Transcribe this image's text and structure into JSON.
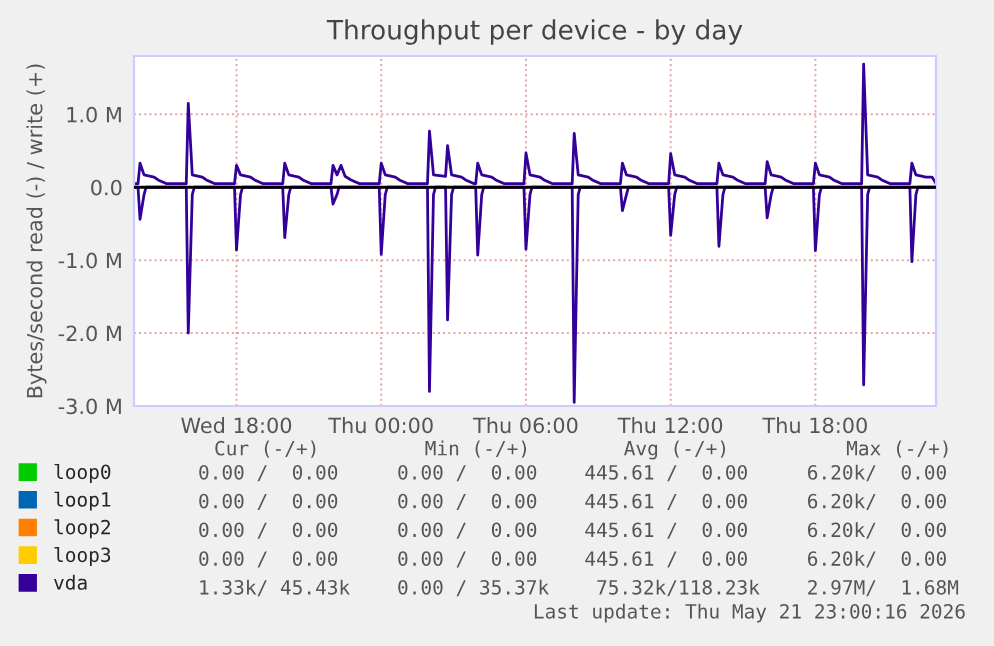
{
  "chart_data": {
    "type": "line",
    "title": "Throughput per device - by day",
    "ylabel": "Bytes/second read (-) / write (+)",
    "xlim": [
      "2026-05-20T13:45",
      "2026-05-21T23:00"
    ],
    "xticks": [
      {
        "value": "2026-05-20T18:00",
        "label": "Wed 18:00"
      },
      {
        "value": "2026-05-21T00:00",
        "label": "Thu 00:00"
      },
      {
        "value": "2026-05-21T06:00",
        "label": "Thu 06:00"
      },
      {
        "value": "2026-05-21T12:00",
        "label": "Thu 12:00"
      },
      {
        "value": "2026-05-21T18:00",
        "label": "Thu 18:00"
      }
    ],
    "ylim": [
      -3.0,
      1.8
    ],
    "yticks": [
      {
        "value": -3,
        "label": "-3.0 M"
      },
      {
        "value": -2,
        "label": "-2.0 M"
      },
      {
        "value": -1,
        "label": "-1.0 M"
      },
      {
        "value": 0,
        "label": "0.0"
      },
      {
        "value": 1,
        "label": "1.0 M"
      }
    ],
    "grid": true,
    "legend": "bottom",
    "line_style": "solid",
    "marker": "none",
    "ref_lines": [
      {
        "axis": "y",
        "value": 0,
        "color": "#000000"
      }
    ],
    "series": [
      {
        "name": "loop0",
        "color": "#00cc00"
      },
      {
        "name": "loop1",
        "color": "#0066b3"
      },
      {
        "name": "loop2",
        "color": "#ff8000"
      },
      {
        "name": "loop3",
        "color": "#ffcc00"
      },
      {
        "name": "vda",
        "color": "#330099",
        "x": [
          "2026-05-20T13:45",
          "2026-05-20T13:55",
          "2026-05-20T14:00",
          "2026-05-20T14:10",
          "2026-05-20T14:35",
          "2026-05-20T14:45",
          "2026-05-20T15:05",
          "2026-05-20T15:55",
          "2026-05-20T16:00",
          "2026-05-20T16:10",
          "2026-05-20T16:35",
          "2026-05-20T16:45",
          "2026-05-20T17:05",
          "2026-05-20T17:55",
          "2026-05-20T18:00",
          "2026-05-20T18:10",
          "2026-05-20T18:35",
          "2026-05-20T18:45",
          "2026-05-20T19:05",
          "2026-05-20T19:55",
          "2026-05-20T20:00",
          "2026-05-20T20:10",
          "2026-05-20T20:35",
          "2026-05-20T20:45",
          "2026-05-20T21:05",
          "2026-05-20T21:55",
          "2026-05-20T22:00",
          "2026-05-20T22:10",
          "2026-05-20T22:20",
          "2026-05-20T22:30",
          "2026-05-20T22:45",
          "2026-05-20T23:05",
          "2026-05-20T23:55",
          "2026-05-21T00:00",
          "2026-05-21T00:10",
          "2026-05-21T00:35",
          "2026-05-21T00:45",
          "2026-05-21T01:05",
          "2026-05-21T01:55",
          "2026-05-21T02:00",
          "2026-05-21T02:10",
          "2026-05-21T02:40",
          "2026-05-21T02:45",
          "2026-05-21T02:55",
          "2026-05-21T03:20",
          "2026-05-21T03:30",
          "2026-05-21T03:50",
          "2026-05-21T03:55",
          "2026-05-21T04:00",
          "2026-05-21T04:10",
          "2026-05-21T04:35",
          "2026-05-21T04:45",
          "2026-05-21T05:05",
          "2026-05-21T05:55",
          "2026-05-21T06:00",
          "2026-05-21T06:10",
          "2026-05-21T06:35",
          "2026-05-21T06:45",
          "2026-05-21T07:05",
          "2026-05-21T07:55",
          "2026-05-21T08:00",
          "2026-05-21T08:10",
          "2026-05-21T08:35",
          "2026-05-21T08:45",
          "2026-05-21T09:05",
          "2026-05-21T09:55",
          "2026-05-21T10:00",
          "2026-05-21T10:10",
          "2026-05-21T10:35",
          "2026-05-21T10:45",
          "2026-05-21T11:05",
          "2026-05-21T11:55",
          "2026-05-21T12:00",
          "2026-05-21T12:10",
          "2026-05-21T12:35",
          "2026-05-21T12:45",
          "2026-05-21T13:05",
          "2026-05-21T13:55",
          "2026-05-21T14:00",
          "2026-05-21T14:10",
          "2026-05-21T14:35",
          "2026-05-21T14:45",
          "2026-05-21T15:05",
          "2026-05-21T15:55",
          "2026-05-21T16:00",
          "2026-05-21T16:10",
          "2026-05-21T16:35",
          "2026-05-21T16:45",
          "2026-05-21T17:05",
          "2026-05-21T17:55",
          "2026-05-21T18:00",
          "2026-05-21T18:10",
          "2026-05-21T18:35",
          "2026-05-21T18:45",
          "2026-05-21T19:05",
          "2026-05-21T19:55",
          "2026-05-21T20:00",
          "2026-05-21T20:10",
          "2026-05-21T20:35",
          "2026-05-21T20:45",
          "2026-05-21T21:05",
          "2026-05-21T21:55",
          "2026-05-21T22:00",
          "2026-05-21T22:10",
          "2026-05-21T22:35",
          "2026-05-21T22:50",
          "2026-05-21T23:00"
        ],
        "values": [
          0.05,
          0.05,
          0.33,
          0.17,
          0.14,
          0.1,
          0.05,
          0.05,
          1.15,
          0.17,
          0.14,
          0.1,
          0.05,
          0.05,
          0.3,
          0.17,
          0.14,
          0.1,
          0.05,
          0.05,
          0.33,
          0.17,
          0.14,
          0.1,
          0.05,
          0.05,
          0.3,
          0.17,
          0.3,
          0.15,
          0.1,
          0.05,
          0.05,
          0.33,
          0.17,
          0.14,
          0.1,
          0.05,
          0.05,
          0.77,
          0.17,
          0.15,
          0.57,
          0.17,
          0.14,
          0.1,
          0.05,
          0.05,
          0.33,
          0.17,
          0.14,
          0.1,
          0.05,
          0.05,
          0.47,
          0.17,
          0.14,
          0.1,
          0.05,
          0.05,
          0.74,
          0.17,
          0.14,
          0.1,
          0.05,
          0.05,
          0.33,
          0.17,
          0.14,
          0.1,
          0.05,
          0.05,
          0.46,
          0.17,
          0.14,
          0.1,
          0.05,
          0.05,
          0.33,
          0.17,
          0.14,
          0.1,
          0.05,
          0.05,
          0.35,
          0.17,
          0.14,
          0.1,
          0.05,
          0.05,
          0.33,
          0.17,
          0.14,
          0.1,
          0.05,
          0.05,
          1.69,
          0.17,
          0.14,
          0.1,
          0.05,
          0.05,
          0.33,
          0.17,
          0.14,
          0.14,
          0.05
        ]
      },
      {
        "color": "#330099",
        "x": [
          "2026-05-20T13:45",
          "2026-05-20T13:55",
          "2026-05-20T14:00",
          "2026-05-20T14:10",
          "2026-05-20T14:15",
          "2026-05-20T15:55",
          "2026-05-20T16:00",
          "2026-05-20T16:10",
          "2026-05-20T16:15",
          "2026-05-20T17:55",
          "2026-05-20T18:00",
          "2026-05-20T18:10",
          "2026-05-20T18:15",
          "2026-05-20T19:55",
          "2026-05-20T20:00",
          "2026-05-20T20:10",
          "2026-05-20T20:15",
          "2026-05-20T21:55",
          "2026-05-20T22:00",
          "2026-05-20T22:10",
          "2026-05-20T22:15",
          "2026-05-20T23:55",
          "2026-05-21T00:00",
          "2026-05-21T00:10",
          "2026-05-21T00:15",
          "2026-05-21T01:55",
          "2026-05-21T02:00",
          "2026-05-21T02:10",
          "2026-05-21T02:15",
          "2026-05-21T02:40",
          "2026-05-21T02:45",
          "2026-05-21T02:55",
          "2026-05-21T03:00",
          "2026-05-21T03:55",
          "2026-05-21T04:00",
          "2026-05-21T04:10",
          "2026-05-21T04:15",
          "2026-05-21T05:55",
          "2026-05-21T06:00",
          "2026-05-21T06:10",
          "2026-05-21T06:15",
          "2026-05-21T07:55",
          "2026-05-21T08:00",
          "2026-05-21T08:10",
          "2026-05-21T08:15",
          "2026-05-21T09:55",
          "2026-05-21T10:00",
          "2026-05-21T10:10",
          "2026-05-21T10:15",
          "2026-05-21T11:55",
          "2026-05-21T12:00",
          "2026-05-21T12:10",
          "2026-05-21T12:15",
          "2026-05-21T13:55",
          "2026-05-21T14:00",
          "2026-05-21T14:10",
          "2026-05-21T14:15",
          "2026-05-21T15:55",
          "2026-05-21T16:00",
          "2026-05-21T16:10",
          "2026-05-21T16:15",
          "2026-05-21T17:55",
          "2026-05-21T18:00",
          "2026-05-21T18:10",
          "2026-05-21T18:15",
          "2026-05-21T19:55",
          "2026-05-21T20:00",
          "2026-05-21T20:10",
          "2026-05-21T20:15",
          "2026-05-21T21:55",
          "2026-05-21T22:00",
          "2026-05-21T22:10",
          "2026-05-21T22:15",
          "2026-05-21T23:00"
        ],
        "values": [
          0,
          0,
          -0.44,
          -0.1,
          0,
          0,
          -2.0,
          -0.1,
          0,
          0,
          -0.86,
          -0.1,
          0,
          0,
          -0.69,
          -0.1,
          0,
          0,
          -0.23,
          -0.1,
          0,
          0,
          -0.92,
          -0.1,
          0,
          0,
          -2.8,
          -0.1,
          0,
          0,
          -1.82,
          -0.1,
          0,
          0,
          -0.93,
          -0.1,
          0,
          0,
          -0.85,
          -0.1,
          0,
          0,
          -2.95,
          -0.1,
          0,
          0,
          -0.32,
          -0.1,
          0,
          0,
          -0.66,
          -0.1,
          0,
          0,
          -0.81,
          -0.1,
          0,
          0,
          -0.42,
          -0.1,
          0,
          0,
          -0.87,
          -0.1,
          0,
          0,
          -2.71,
          -0.1,
          0,
          0,
          -1.02,
          -0.1,
          0,
          0
        ]
      }
    ],
    "annotations": [
      "Cur (-/+)         Min (-/+)        Avg (-/+)          Max (-/+)",
      "0.00 /  0.00     0.00 /  0.00    445.61 /  0.00     6.20k/  0.00",
      "0.00 /  0.00     0.00 /  0.00    445.61 /  0.00     6.20k/  0.00",
      "0.00 /  0.00     0.00 /  0.00    445.61 /  0.00     6.20k/  0.00",
      "0.00 /  0.00     0.00 /  0.00    445.61 /  0.00     6.20k/  0.00",
      "1.33k/ 45.43k    0.00 / 35.37k    75.32k/118.23k    2.97M/  1.68M",
      "Last update: Thu May 21 23:00:16 2026"
    ]
  }
}
